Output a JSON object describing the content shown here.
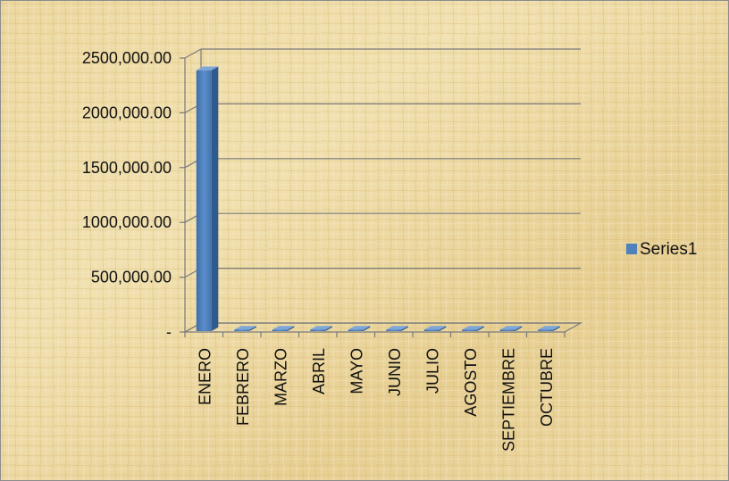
{
  "chart_data": {
    "type": "bar",
    "categories": [
      "ENERO",
      "FEBRERO",
      "MARZO",
      "ABRIL",
      "MAYO",
      "JUNIO",
      "JULIO",
      "AGOSTO",
      "SEPTIEMBRE",
      "OCTUBRE"
    ],
    "series": [
      {
        "name": "Series1",
        "values": [
          2380000,
          0,
          0,
          0,
          0,
          0,
          0,
          0,
          0,
          0
        ],
        "color": "#4f81bd"
      }
    ],
    "y_ticks": [
      0,
      500000,
      1000000,
      1500000,
      2000000,
      2500000
    ],
    "y_tick_labels": [
      "-",
      "500,000.00",
      "1000,000.00",
      "1500,000.00",
      "2000,000.00",
      "2500,000.00"
    ],
    "ylim": [
      0,
      2500000
    ],
    "grid": true,
    "legend": "right",
    "three_d": true,
    "background": "parchment"
  }
}
